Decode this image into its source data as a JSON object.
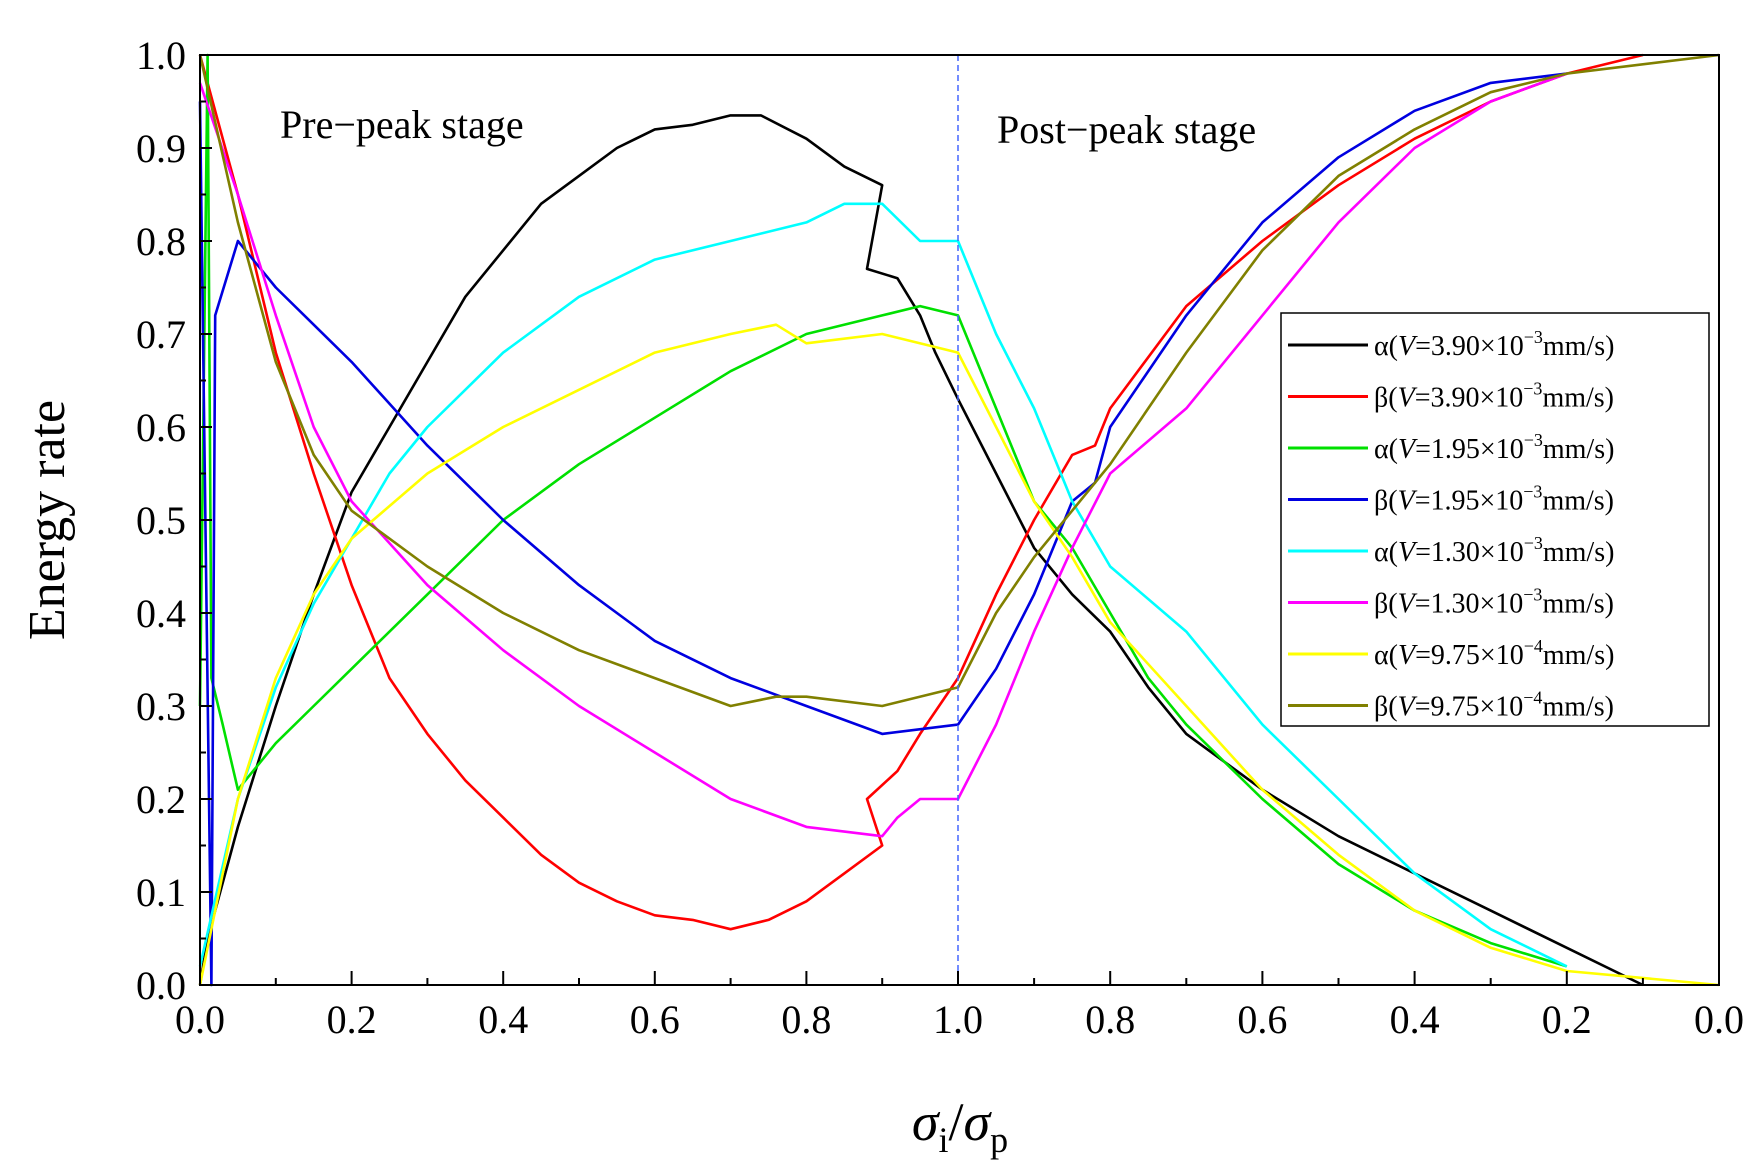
{
  "chart_data": {
    "type": "line",
    "ylabel": "Energy rate",
    "xlabel_parts": {
      "sigma1": "σ",
      "sub1": "i",
      "slash": "/",
      "sigma2": "σ",
      "sub2": "p"
    },
    "ylim": [
      0,
      1
    ],
    "y_ticks": [
      "0.0",
      "0.1",
      "0.2",
      "0.3",
      "0.4",
      "0.5",
      "0.6",
      "0.7",
      "0.8",
      "0.9",
      "1.0"
    ],
    "x_ticks_pre": [
      "0.0",
      "0.2",
      "0.4",
      "0.6",
      "0.8",
      "1.0"
    ],
    "x_ticks_post": [
      "0.8",
      "0.6",
      "0.4",
      "0.2",
      "0.0"
    ],
    "annotations": {
      "pre": "Pre−peak stage",
      "post": "Post−peak stage"
    },
    "peak_line_color": "#4466ff",
    "x_note": "x values: pre-peak stage uses σi/σp from 0 to 1.0; post-peak values given as σi/σp descending from 1.0 to 0.0",
    "series": [
      {
        "name": "α(V=3.90×10⁻³mm/s)",
        "symbol": "α",
        "exp": "−3",
        "rest": "3.90×10",
        "unit": "mm/s",
        "color": "#000000",
        "pre": [
          [
            0.0,
            0.0
          ],
          [
            0.01,
            0.05
          ],
          [
            0.05,
            0.17
          ],
          [
            0.1,
            0.3
          ],
          [
            0.15,
            0.42
          ],
          [
            0.2,
            0.53
          ],
          [
            0.25,
            0.6
          ],
          [
            0.3,
            0.67
          ],
          [
            0.35,
            0.74
          ],
          [
            0.4,
            0.79
          ],
          [
            0.45,
            0.84
          ],
          [
            0.5,
            0.87
          ],
          [
            0.55,
            0.9
          ],
          [
            0.6,
            0.92
          ],
          [
            0.65,
            0.925
          ],
          [
            0.7,
            0.935
          ],
          [
            0.74,
            0.935
          ],
          [
            0.8,
            0.91
          ],
          [
            0.85,
            0.88
          ],
          [
            0.9,
            0.86
          ],
          [
            0.88,
            0.77
          ],
          [
            0.92,
            0.76
          ],
          [
            0.95,
            0.72
          ],
          [
            0.97,
            0.68
          ],
          [
            1.0,
            0.63
          ]
        ],
        "post": [
          [
            1.0,
            0.63
          ],
          [
            0.95,
            0.55
          ],
          [
            0.9,
            0.47
          ],
          [
            0.85,
            0.42
          ],
          [
            0.8,
            0.38
          ],
          [
            0.75,
            0.32
          ],
          [
            0.7,
            0.27
          ],
          [
            0.6,
            0.21
          ],
          [
            0.5,
            0.16
          ],
          [
            0.4,
            0.12
          ],
          [
            0.3,
            0.08
          ],
          [
            0.2,
            0.04
          ],
          [
            0.1,
            0.0
          ]
        ]
      },
      {
        "name": "β(V=3.90×10⁻³mm/s)",
        "symbol": "β",
        "exp": "−3",
        "rest": "3.90×10",
        "unit": "mm/s",
        "color": "#ff0000",
        "pre": [
          [
            0.0,
            1.0
          ],
          [
            0.05,
            0.85
          ],
          [
            0.1,
            0.68
          ],
          [
            0.15,
            0.55
          ],
          [
            0.2,
            0.43
          ],
          [
            0.25,
            0.33
          ],
          [
            0.3,
            0.27
          ],
          [
            0.35,
            0.22
          ],
          [
            0.4,
            0.18
          ],
          [
            0.45,
            0.14
          ],
          [
            0.5,
            0.11
          ],
          [
            0.55,
            0.09
          ],
          [
            0.6,
            0.075
          ],
          [
            0.65,
            0.07
          ],
          [
            0.7,
            0.06
          ],
          [
            0.75,
            0.07
          ],
          [
            0.8,
            0.09
          ],
          [
            0.85,
            0.12
          ],
          [
            0.9,
            0.15
          ],
          [
            0.88,
            0.2
          ],
          [
            0.92,
            0.23
          ],
          [
            0.95,
            0.27
          ],
          [
            1.0,
            0.33
          ]
        ],
        "post": [
          [
            1.0,
            0.33
          ],
          [
            0.95,
            0.42
          ],
          [
            0.9,
            0.5
          ],
          [
            0.85,
            0.57
          ],
          [
            0.82,
            0.58
          ],
          [
            0.8,
            0.62
          ],
          [
            0.7,
            0.73
          ],
          [
            0.6,
            0.8
          ],
          [
            0.5,
            0.86
          ],
          [
            0.4,
            0.91
          ],
          [
            0.3,
            0.95
          ],
          [
            0.2,
            0.98
          ],
          [
            0.1,
            1.0
          ]
        ]
      },
      {
        "name": "α(V=1.95×10⁻³mm/s)",
        "symbol": "α",
        "exp": "−3",
        "rest": "1.95×10",
        "unit": "mm/s",
        "color": "#00e000",
        "pre": [
          [
            0.0,
            0.3
          ],
          [
            0.01,
            1.0
          ],
          [
            0.015,
            0.33
          ],
          [
            0.03,
            0.28
          ],
          [
            0.05,
            0.21
          ],
          [
            0.1,
            0.26
          ],
          [
            0.15,
            0.3
          ],
          [
            0.2,
            0.34
          ],
          [
            0.3,
            0.42
          ],
          [
            0.4,
            0.5
          ],
          [
            0.5,
            0.56
          ],
          [
            0.6,
            0.61
          ],
          [
            0.7,
            0.66
          ],
          [
            0.8,
            0.7
          ],
          [
            0.9,
            0.72
          ],
          [
            0.95,
            0.73
          ],
          [
            1.0,
            0.72
          ]
        ],
        "post": [
          [
            1.0,
            0.72
          ],
          [
            0.95,
            0.62
          ],
          [
            0.9,
            0.52
          ],
          [
            0.85,
            0.47
          ],
          [
            0.8,
            0.4
          ],
          [
            0.75,
            0.33
          ],
          [
            0.7,
            0.28
          ],
          [
            0.6,
            0.2
          ],
          [
            0.5,
            0.13
          ],
          [
            0.4,
            0.08
          ],
          [
            0.3,
            0.045
          ],
          [
            0.2,
            0.02
          ]
        ]
      },
      {
        "name": "β(V=1.95×10⁻³mm/s)",
        "symbol": "β",
        "exp": "−3",
        "rest": "1.95×10",
        "unit": "mm/s",
        "color": "#0000e0",
        "pre": [
          [
            0.0,
            0.95
          ],
          [
            0.015,
            0.0
          ],
          [
            0.02,
            0.72
          ],
          [
            0.05,
            0.8
          ],
          [
            0.1,
            0.75
          ],
          [
            0.15,
            0.71
          ],
          [
            0.2,
            0.67
          ],
          [
            0.3,
            0.58
          ],
          [
            0.4,
            0.5
          ],
          [
            0.5,
            0.43
          ],
          [
            0.6,
            0.37
          ],
          [
            0.7,
            0.33
          ],
          [
            0.8,
            0.3
          ],
          [
            0.9,
            0.27
          ],
          [
            1.0,
            0.28
          ]
        ],
        "post": [
          [
            1.0,
            0.28
          ],
          [
            0.95,
            0.34
          ],
          [
            0.9,
            0.42
          ],
          [
            0.85,
            0.52
          ],
          [
            0.82,
            0.54
          ],
          [
            0.8,
            0.6
          ],
          [
            0.7,
            0.72
          ],
          [
            0.6,
            0.82
          ],
          [
            0.5,
            0.89
          ],
          [
            0.4,
            0.94
          ],
          [
            0.3,
            0.97
          ],
          [
            0.2,
            0.98
          ]
        ]
      },
      {
        "name": "α(V=1.30×10⁻³mm/s)",
        "symbol": "α",
        "exp": "−3",
        "rest": "1.30×10",
        "unit": "mm/s",
        "color": "#00ffff",
        "pre": [
          [
            0.0,
            0.02
          ],
          [
            0.05,
            0.2
          ],
          [
            0.1,
            0.32
          ],
          [
            0.15,
            0.41
          ],
          [
            0.2,
            0.48
          ],
          [
            0.25,
            0.55
          ],
          [
            0.3,
            0.6
          ],
          [
            0.4,
            0.68
          ],
          [
            0.5,
            0.74
          ],
          [
            0.6,
            0.78
          ],
          [
            0.7,
            0.8
          ],
          [
            0.8,
            0.82
          ],
          [
            0.85,
            0.84
          ],
          [
            0.9,
            0.84
          ],
          [
            0.95,
            0.8
          ],
          [
            1.0,
            0.8
          ]
        ],
        "post": [
          [
            1.0,
            0.8
          ],
          [
            0.95,
            0.7
          ],
          [
            0.9,
            0.62
          ],
          [
            0.85,
            0.52
          ],
          [
            0.8,
            0.45
          ],
          [
            0.7,
            0.38
          ],
          [
            0.6,
            0.28
          ],
          [
            0.5,
            0.2
          ],
          [
            0.4,
            0.12
          ],
          [
            0.3,
            0.06
          ],
          [
            0.2,
            0.02
          ]
        ]
      },
      {
        "name": "β(V=1.30×10⁻³mm/s)",
        "symbol": "β",
        "exp": "−3",
        "rest": "1.30×10",
        "unit": "mm/s",
        "color": "#ff00ff",
        "pre": [
          [
            0.0,
            0.97
          ],
          [
            0.05,
            0.85
          ],
          [
            0.1,
            0.72
          ],
          [
            0.15,
            0.6
          ],
          [
            0.2,
            0.52
          ],
          [
            0.3,
            0.43
          ],
          [
            0.4,
            0.36
          ],
          [
            0.5,
            0.3
          ],
          [
            0.6,
            0.25
          ],
          [
            0.7,
            0.2
          ],
          [
            0.8,
            0.17
          ],
          [
            0.9,
            0.16
          ],
          [
            0.92,
            0.18
          ],
          [
            0.95,
            0.2
          ],
          [
            1.0,
            0.2
          ]
        ],
        "post": [
          [
            1.0,
            0.2
          ],
          [
            0.95,
            0.28
          ],
          [
            0.9,
            0.38
          ],
          [
            0.85,
            0.47
          ],
          [
            0.8,
            0.55
          ],
          [
            0.7,
            0.62
          ],
          [
            0.6,
            0.72
          ],
          [
            0.5,
            0.82
          ],
          [
            0.4,
            0.9
          ],
          [
            0.3,
            0.95
          ],
          [
            0.2,
            0.98
          ]
        ]
      },
      {
        "name": "α(V=9.75×10⁻⁴mm/s)",
        "symbol": "α",
        "exp": "−4",
        "rest": "9.75×10",
        "unit": "mm/s",
        "color": "#ffff00",
        "pre": [
          [
            0.0,
            0.0
          ],
          [
            0.05,
            0.2
          ],
          [
            0.1,
            0.33
          ],
          [
            0.15,
            0.42
          ],
          [
            0.2,
            0.48
          ],
          [
            0.3,
            0.55
          ],
          [
            0.4,
            0.6
          ],
          [
            0.5,
            0.64
          ],
          [
            0.6,
            0.68
          ],
          [
            0.7,
            0.7
          ],
          [
            0.76,
            0.71
          ],
          [
            0.8,
            0.69
          ],
          [
            0.9,
            0.7
          ],
          [
            1.0,
            0.68
          ]
        ],
        "post": [
          [
            1.0,
            0.68
          ],
          [
            0.95,
            0.6
          ],
          [
            0.9,
            0.52
          ],
          [
            0.85,
            0.46
          ],
          [
            0.8,
            0.39
          ],
          [
            0.7,
            0.3
          ],
          [
            0.6,
            0.21
          ],
          [
            0.5,
            0.14
          ],
          [
            0.4,
            0.08
          ],
          [
            0.3,
            0.04
          ],
          [
            0.2,
            0.015
          ],
          [
            0.0,
            0.0
          ]
        ]
      },
      {
        "name": "β(V=9.75×10⁻⁴mm/s)",
        "symbol": "β",
        "exp": "−4",
        "rest": "9.75×10",
        "unit": "mm/s",
        "color": "#808000",
        "pre": [
          [
            0.0,
            1.0
          ],
          [
            0.05,
            0.82
          ],
          [
            0.1,
            0.67
          ],
          [
            0.15,
            0.57
          ],
          [
            0.2,
            0.51
          ],
          [
            0.3,
            0.45
          ],
          [
            0.4,
            0.4
          ],
          [
            0.5,
            0.36
          ],
          [
            0.6,
            0.33
          ],
          [
            0.7,
            0.3
          ],
          [
            0.76,
            0.31
          ],
          [
            0.8,
            0.31
          ],
          [
            0.9,
            0.3
          ],
          [
            1.0,
            0.32
          ]
        ],
        "post": [
          [
            1.0,
            0.32
          ],
          [
            0.95,
            0.4
          ],
          [
            0.9,
            0.46
          ],
          [
            0.8,
            0.56
          ],
          [
            0.7,
            0.68
          ],
          [
            0.6,
            0.79
          ],
          [
            0.5,
            0.87
          ],
          [
            0.4,
            0.92
          ],
          [
            0.3,
            0.96
          ],
          [
            0.2,
            0.98
          ],
          [
            0.0,
            1.0
          ]
        ]
      }
    ]
  }
}
